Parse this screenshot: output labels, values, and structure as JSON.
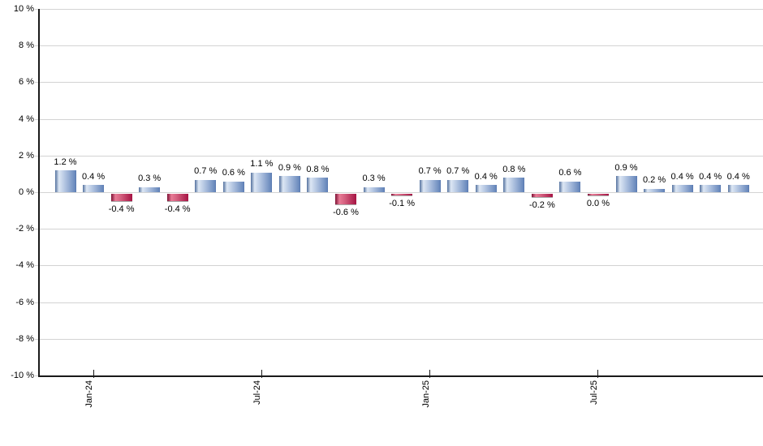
{
  "chart_data": {
    "type": "bar",
    "title": "",
    "xlabel": "",
    "ylabel": "",
    "ylim": [
      -10,
      10
    ],
    "y_tick_step": 2,
    "y_tick_labels": [
      "10 %",
      "8 %",
      "6 %",
      "4 %",
      "2 %",
      "0 %",
      "-2 %",
      "-4 %",
      "-6 %",
      "-8 %",
      "-10 %"
    ],
    "x_tick_labels": [
      "Jan-24",
      "Jul-24",
      "Jan-25",
      "Jul-25"
    ],
    "x_tick_bar_indices": [
      1,
      7,
      13,
      19
    ],
    "values": [
      1.2,
      0.4,
      -0.4,
      0.3,
      -0.4,
      0.7,
      0.6,
      1.1,
      0.9,
      0.8,
      -0.6,
      0.3,
      -0.1,
      0.7,
      0.7,
      0.4,
      0.8,
      -0.2,
      0.6,
      0.0,
      0.9,
      0.2,
      0.4,
      0.4,
      0.4
    ],
    "bar_labels": [
      "1.2 %",
      "0.4 %",
      "-0.4 %",
      "0.3 %",
      "-0.4 %",
      "0.7 %",
      "0.6 %",
      "1.1 %",
      "0.9 %",
      "0.8 %",
      "-0.6 %",
      "0.3 %",
      "-0.1 %",
      "0.7 %",
      "0.7 %",
      "0.4 %",
      "0.8 %",
      "-0.2 %",
      "0.6 %",
      "0.0 %",
      "0.9 %",
      "0.2 %",
      "0.4 %",
      "0.4 %",
      "0.4 %"
    ],
    "grid": true,
    "legend": false,
    "colors": {
      "positive_bar_gradient": [
        "#54719f",
        "#dde7f4",
        "#b4c6e2",
        "#6485ba"
      ],
      "negative_bar_gradient": [
        "#7d1034",
        "#e87a95",
        "#d4607f",
        "#a61343"
      ],
      "gridline": "#d3d3d3",
      "axis": "#1a1a1a",
      "text": "#000000"
    }
  }
}
